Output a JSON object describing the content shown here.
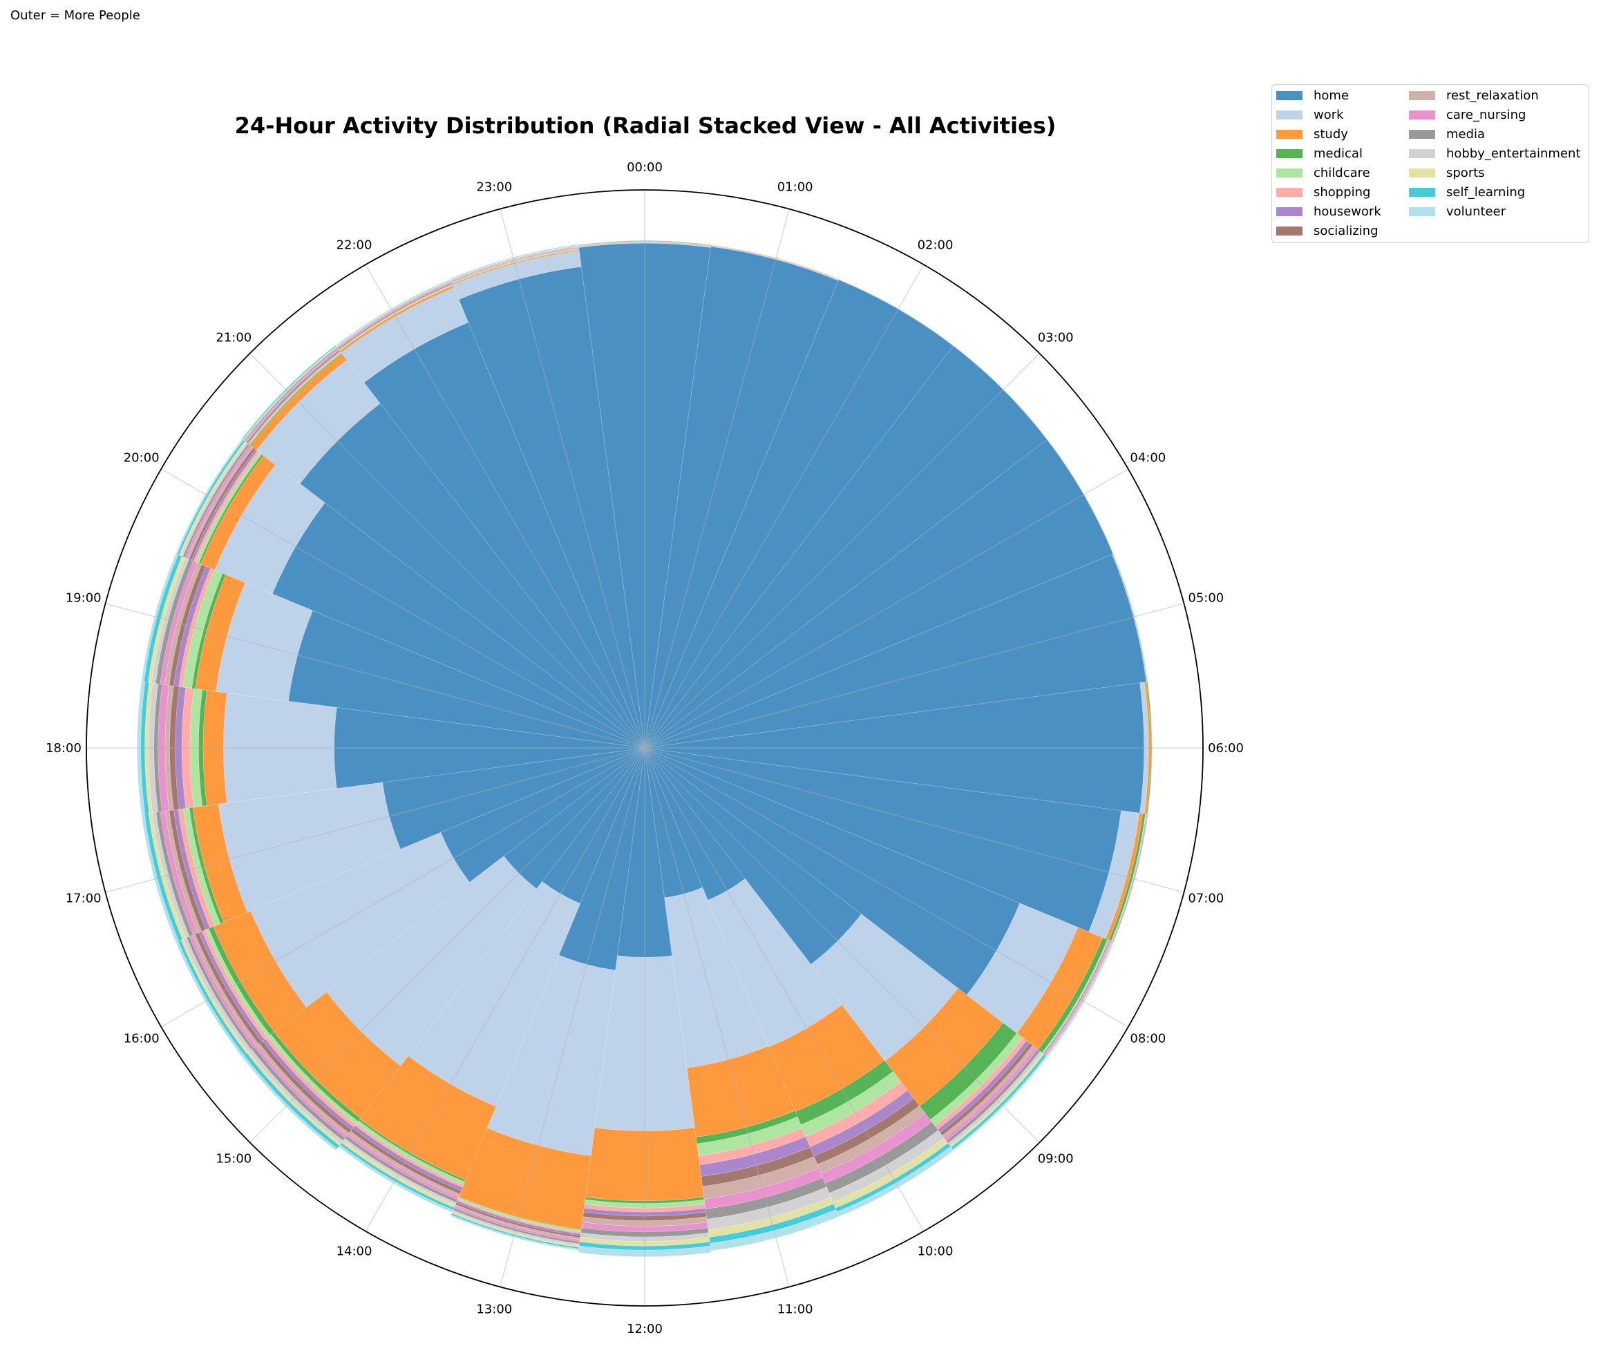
{
  "annotation": "Outer = More People",
  "chart_data": {
    "type": "bar",
    "subtype": "polar-stacked",
    "title": "24-Hour Activity Distribution (Radial Stacked View - All Activities)",
    "rlim": [
      0,
      110
    ],
    "grid": true,
    "legend_position": "top-right outside",
    "categories": [
      "00:00",
      "01:00",
      "02:00",
      "03:00",
      "04:00",
      "05:00",
      "06:00",
      "07:00",
      "08:00",
      "09:00",
      "10:00",
      "11:00",
      "12:00",
      "13:00",
      "14:00",
      "15:00",
      "16:00",
      "17:00",
      "18:00",
      "19:00",
      "20:00",
      "21:00",
      "22:00",
      "23:00"
    ],
    "series": [
      {
        "name": "home",
        "color": "#4a90c2",
        "values": [
          99.5,
          99.7,
          99.9,
          99.9,
          99.9,
          99.7,
          98.4,
          94.7,
          80,
          53.8,
          32.5,
          29.8,
          41.3,
          44.2,
          33.2,
          35,
          43.5,
          52.1,
          61.2,
          70.8,
          79.4,
          85.6,
          90.8,
          95.7
        ]
      },
      {
        "name": "work",
        "color": "#bed2ea",
        "values": [
          0.3,
          0.2,
          0.1,
          0.1,
          0.1,
          0.3,
          0.9,
          3.6,
          12.4,
          24,
          31.3,
          33.8,
          34.2,
          36.9,
          43.3,
          44,
          40.5,
          32.6,
          21.8,
          14.4,
          12.3,
          10.8,
          7.4,
          3.1
        ]
      },
      {
        "name": "study",
        "color": "#ff993e",
        "values": [
          0.1,
          0.1,
          0,
          0,
          0,
          0,
          0.4,
          0.7,
          5.3,
          11.2,
          13.8,
          13.8,
          13.8,
          14.7,
          15.7,
          13,
          8,
          5.1,
          4.0,
          4.1,
          3.0,
          1.5,
          0.4,
          0.2
        ]
      },
      {
        "name": "medical",
        "color": "#56b356",
        "values": [
          0.1,
          0,
          0,
          0,
          0,
          0,
          0.2,
          0.5,
          1.0,
          3.4,
          2.8,
          1.3,
          0.5,
          0.1,
          0.4,
          0.8,
          1.0,
          0.7,
          0.9,
          0.7,
          0.4,
          0.2,
          0.1,
          0.1
        ]
      },
      {
        "name": "childcare",
        "color": "#ade5a1",
        "values": [
          0,
          0,
          0,
          0,
          0,
          0,
          0.1,
          0.1,
          0.2,
          1.5,
          2.5,
          2.4,
          0.9,
          0.4,
          0.7,
          0.7,
          0.7,
          1.2,
          1.7,
          1.8,
          0.6,
          0.2,
          0.1,
          0.1
        ]
      },
      {
        "name": "shopping",
        "color": "#ffacaa",
        "values": [
          0,
          0,
          0,
          0,
          0,
          0,
          0,
          0.1,
          0.1,
          0.9,
          2.2,
          1.8,
          0.8,
          0.3,
          0.5,
          0.7,
          0.7,
          1.0,
          1.6,
          0.8,
          0.5,
          0.2,
          0.1,
          0.1
        ]
      },
      {
        "name": "housework",
        "color": "#a987ca",
        "values": [
          0,
          0,
          0,
          0,
          0,
          0,
          0,
          0.1,
          0.2,
          0.8,
          2.0,
          2.3,
          0.8,
          0.4,
          0.7,
          0.7,
          0.7,
          0.9,
          1.3,
          1.0,
          0.5,
          0.2,
          0.1,
          0.1
        ]
      },
      {
        "name": "socializing",
        "color": "#a3786f",
        "values": [
          0,
          0,
          0,
          0,
          0,
          0,
          0,
          0.1,
          0.1,
          0.7,
          1.8,
          2.0,
          0.9,
          0.4,
          0.7,
          0.8,
          0.8,
          0.9,
          1.1,
          0.9,
          0.5,
          0.2,
          0.2,
          0.1
        ]
      },
      {
        "name": "rest_relaxation",
        "color": "#d0b0a9",
        "values": [
          0,
          0,
          0,
          0,
          0,
          0,
          0,
          0.1,
          0.1,
          0.6,
          1.9,
          2.5,
          1.1,
          0.4,
          0.6,
          0.6,
          0.6,
          0.8,
          0.9,
          0.9,
          0.4,
          0.2,
          0.1,
          0.1
        ]
      },
      {
        "name": "care_nursing",
        "color": "#e892ce",
        "values": [
          0,
          0,
          0,
          0,
          0,
          0,
          0,
          0,
          0.2,
          0.7,
          2.1,
          2.0,
          1.1,
          0.4,
          0.6,
          0.6,
          0.6,
          1.0,
          1.4,
          0.9,
          0.5,
          0.2,
          0.2,
          0.1
        ]
      },
      {
        "name": "media",
        "color": "#999999",
        "values": [
          0,
          0,
          0,
          0,
          0,
          0,
          0,
          0,
          0.1,
          0.6,
          2.1,
          2.0,
          1.0,
          0.4,
          0.6,
          0.7,
          0.6,
          0.8,
          0.8,
          0.9,
          0.4,
          0.2,
          0.1,
          0.1
        ]
      },
      {
        "name": "hobby_entertainment",
        "color": "#d2d2d2",
        "values": [
          0,
          0,
          0,
          0,
          0,
          0,
          0,
          0,
          0.1,
          0.6,
          1.9,
          2.1,
          0.9,
          0.4,
          0.5,
          0.7,
          0.7,
          0.8,
          1.1,
          0.8,
          0.4,
          0.2,
          0.1,
          0.1
        ]
      },
      {
        "name": "sports",
        "color": "#e2e2a4",
        "values": [
          0,
          0,
          0,
          0,
          0,
          0,
          0,
          0,
          0.1,
          0.4,
          1.3,
          1.5,
          0.9,
          0.3,
          0.6,
          0.5,
          0.5,
          0.7,
          0.7,
          0.7,
          0.4,
          0.1,
          0.1,
          0.1
        ]
      },
      {
        "name": "self_learning",
        "color": "#45cbd9",
        "values": [
          0,
          0,
          0,
          0,
          0,
          0,
          0,
          0,
          0.1,
          0.5,
          0.8,
          1.2,
          0.8,
          0.3,
          0.5,
          0.7,
          0.6,
          0.8,
          0.8,
          0.8,
          0.4,
          0.2,
          0.1,
          0.1
        ]
      },
      {
        "name": "volunteer",
        "color": "#b1e1ea",
        "values": [
          0,
          0,
          0,
          0,
          0,
          0,
          0,
          0,
          0,
          0.3,
          1.0,
          1.5,
          1.3,
          0.3,
          0.5,
          0.5,
          0.5,
          0.6,
          0.7,
          0.5,
          0.3,
          0.1,
          0.1,
          0
        ]
      }
    ]
  }
}
